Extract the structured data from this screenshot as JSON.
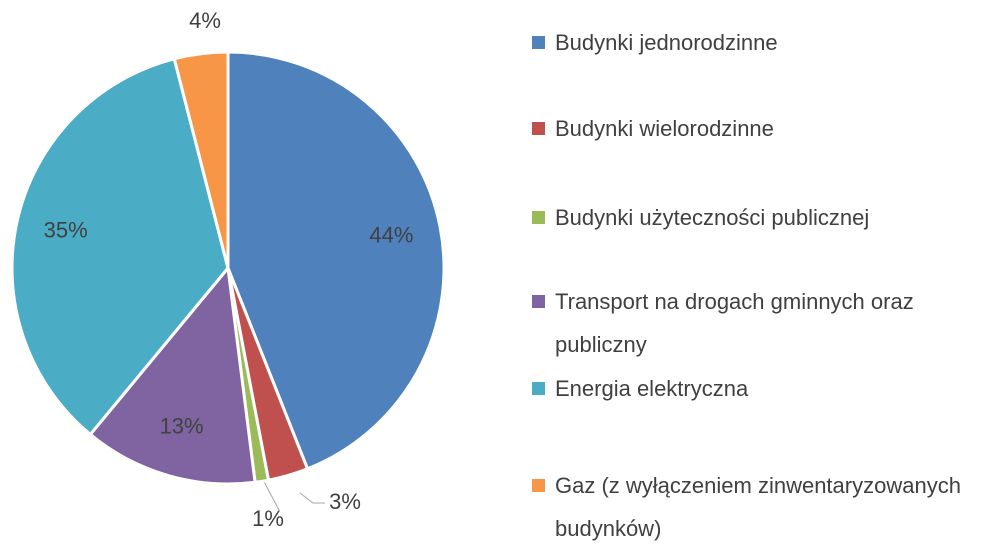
{
  "chart_data": {
    "type": "pie",
    "categories": [
      "Budynki jednorodzinne",
      "Budynki wielorodzinne",
      "Budynki użyteczności publicznej",
      "Transport na drogach gminnych oraz publiczny",
      "Energia elektryczna",
      "Gaz (z wyłączeniem zinwentaryzowanych budynków)"
    ],
    "values": [
      44,
      3,
      1,
      13,
      35,
      4
    ],
    "value_labels": [
      "44%",
      "3%",
      "1%",
      "13%",
      "35%",
      "4%"
    ],
    "colors": [
      "#4f81bd",
      "#c0504d",
      "#9bbb59",
      "#8064a2",
      "#4bacc6",
      "#f79646"
    ],
    "legend": "right"
  }
}
